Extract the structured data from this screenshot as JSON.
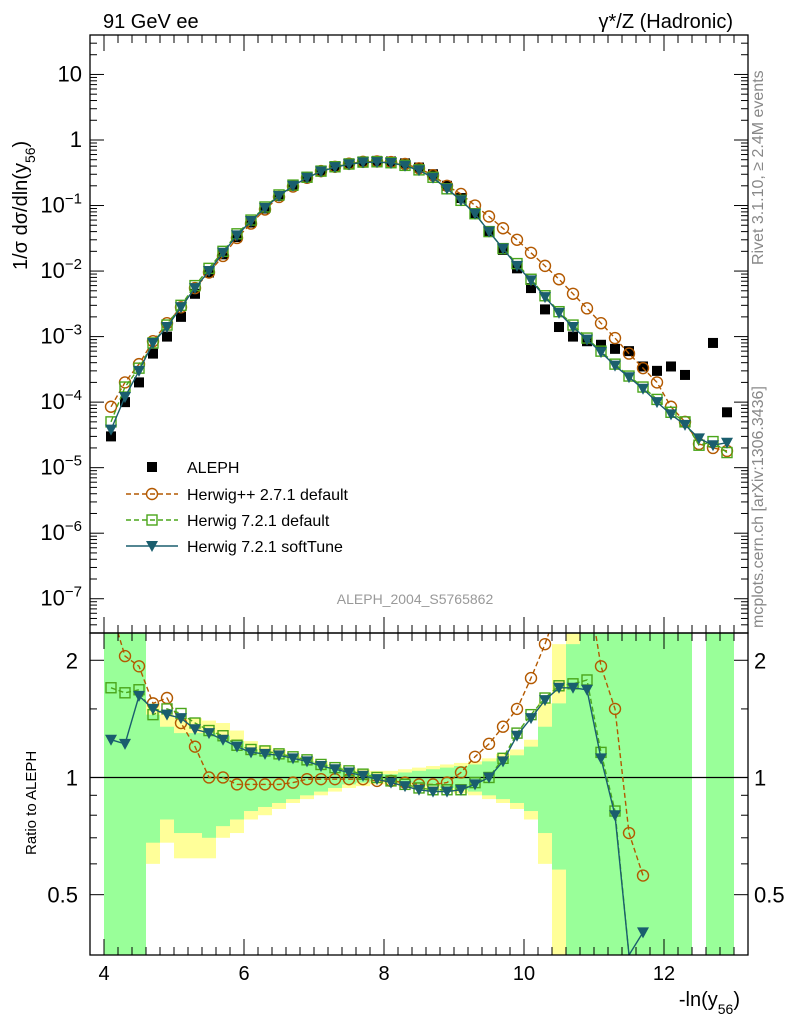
{
  "header": {
    "left_title": "91 GeV ee",
    "right_title": "γ*/Z (Hadronic)"
  },
  "side": {
    "rivet": "Rivet 3.1.10, ≥ 2.4M events",
    "mcplots": "mcplots.cern.ch [arXiv:1306.3436]"
  },
  "analysis_id": "ALEPH_2004_S5765862",
  "axes": {
    "main_ylabel_prefix": "1/σ  dσ/dln(y",
    "main_ylabel_sub": "56",
    "main_ylabel_suffix": ")",
    "ratio_ylabel": "Ratio to ALEPH",
    "xlabel_prefix": "-ln(y",
    "xlabel_sub": "56",
    "xlabel_suffix": ")",
    "main_yticks": [
      {
        "base": "10",
        "exp": "",
        "label": "10",
        "value": 10
      },
      {
        "base": "1",
        "exp": "",
        "label": "1",
        "value": 1
      },
      {
        "base": "10",
        "exp": "−1",
        "label": "10^-1",
        "value": 0.1
      },
      {
        "base": "10",
        "exp": "−2",
        "label": "10^-2",
        "value": 0.01
      },
      {
        "base": "10",
        "exp": "−3",
        "label": "10^-3",
        "value": 0.001
      },
      {
        "base": "10",
        "exp": "−4",
        "label": "10^-4",
        "value": 0.0001
      },
      {
        "base": "10",
        "exp": "−5",
        "label": "10^-5",
        "value": 1e-05
      },
      {
        "base": "10",
        "exp": "−6",
        "label": "10^-6",
        "value": 1e-06
      },
      {
        "base": "10",
        "exp": "−7",
        "label": "10^-7",
        "value": 1e-07
      }
    ],
    "ratio_yticks": [
      {
        "label": "2",
        "value": 2
      },
      {
        "label": "1",
        "value": 1
      },
      {
        "label": "0.5",
        "value": 0.5
      }
    ],
    "xticks": [
      {
        "label": "4",
        "value": 4
      },
      {
        "label": "6",
        "value": 6
      },
      {
        "label": "8",
        "value": 8
      },
      {
        "label": "10",
        "value": 10
      },
      {
        "label": "12",
        "value": 12
      }
    ]
  },
  "legend": {
    "items": [
      {
        "key": "aleph",
        "label": "ALEPH"
      },
      {
        "key": "hpp",
        "label": "Herwig++ 2.7.1 default"
      },
      {
        "key": "h721",
        "label": "Herwig 7.2.1 default"
      },
      {
        "key": "soft",
        "label": "Herwig 7.2.1 softTune"
      }
    ]
  },
  "chart_data": {
    "type": "scatter",
    "xlim": [
      3.8,
      13.2
    ],
    "ylim_main": [
      3e-08,
      40
    ],
    "ylim_ratio": [
      0.35,
      2.35
    ],
    "log_y_main": true,
    "log_y_ratio": true,
    "colors": {
      "aleph": "#000000",
      "hpp": "#b35900",
      "h721": "#4aa61a",
      "soft": "#1a5e6e",
      "band_stat": "#99ff99",
      "band_total": "#ffff99"
    },
    "series": [
      {
        "name": "ALEPH",
        "key": "aleph",
        "x": [
          4.1,
          4.3,
          4.5,
          4.7,
          4.9,
          5.1,
          5.3,
          5.5,
          5.7,
          5.9,
          6.1,
          6.3,
          6.5,
          6.7,
          6.9,
          7.1,
          7.3,
          7.5,
          7.7,
          7.9,
          8.1,
          8.3,
          8.5,
          8.7,
          8.9,
          9.1,
          9.3,
          9.5,
          9.7,
          9.9,
          10.1,
          10.3,
          10.5,
          10.7,
          10.9,
          11.1,
          11.3,
          11.5,
          11.7,
          11.9,
          12.1,
          12.3,
          12.7,
          12.9
        ],
        "y": [
          3e-05,
          0.0001,
          0.0002,
          0.00055,
          0.001,
          0.002,
          0.0045,
          0.0095,
          0.018,
          0.033,
          0.055,
          0.09,
          0.14,
          0.2,
          0.27,
          0.34,
          0.4,
          0.44,
          0.47,
          0.48,
          0.47,
          0.44,
          0.38,
          0.3,
          0.2,
          0.13,
          0.075,
          0.04,
          0.021,
          0.011,
          0.0055,
          0.0026,
          0.0014,
          0.001,
          0.00085,
          0.00075,
          0.00065,
          0.0006,
          0.00035,
          0.0003,
          0.00035,
          0.00026,
          0.0008,
          7e-05
        ]
      },
      {
        "name": "Herwig++ 2.7.1 default",
        "key": "hpp",
        "x": [
          4.1,
          4.3,
          4.5,
          4.7,
          4.9,
          5.1,
          5.3,
          5.5,
          5.7,
          5.9,
          6.1,
          6.3,
          6.5,
          6.7,
          6.9,
          7.1,
          7.3,
          7.5,
          7.7,
          7.9,
          8.1,
          8.3,
          8.5,
          8.7,
          8.9,
          9.1,
          9.3,
          9.5,
          9.7,
          9.9,
          10.1,
          10.3,
          10.5,
          10.7,
          10.9,
          11.1,
          11.3,
          11.5,
          11.7,
          11.9,
          12.1,
          12.3,
          12.5,
          12.7,
          12.9
        ],
        "y": [
          8.5e-05,
          0.0002,
          0.00038,
          0.00085,
          0.0016,
          0.0028,
          0.0055,
          0.0095,
          0.017,
          0.032,
          0.053,
          0.087,
          0.135,
          0.195,
          0.265,
          0.335,
          0.39,
          0.435,
          0.465,
          0.47,
          0.46,
          0.43,
          0.37,
          0.29,
          0.2,
          0.15,
          0.1,
          0.068,
          0.045,
          0.03,
          0.019,
          0.012,
          0.0075,
          0.0045,
          0.0027,
          0.0016,
          0.00095,
          0.00055,
          0.00033,
          0.0002,
          8.5e-05,
          5e-05,
          2.3e-05,
          2e-05,
          1.8e-05
        ]
      },
      {
        "name": "Herwig 7.2.1 default",
        "key": "h721",
        "x": [
          4.1,
          4.3,
          4.5,
          4.7,
          4.9,
          5.1,
          5.3,
          5.5,
          5.7,
          5.9,
          6.1,
          6.3,
          6.5,
          6.7,
          6.9,
          7.1,
          7.3,
          7.5,
          7.7,
          7.9,
          8.1,
          8.3,
          8.5,
          8.7,
          8.9,
          9.1,
          9.3,
          9.5,
          9.7,
          9.9,
          10.1,
          10.3,
          10.5,
          10.7,
          10.9,
          11.1,
          11.3,
          11.5,
          11.7,
          11.9,
          12.1,
          12.3,
          12.5,
          12.7,
          12.9
        ],
        "y": [
          5e-05,
          0.00017,
          0.00033,
          0.0008,
          0.0015,
          0.003,
          0.006,
          0.011,
          0.02,
          0.037,
          0.06,
          0.095,
          0.145,
          0.205,
          0.27,
          0.335,
          0.39,
          0.43,
          0.46,
          0.465,
          0.45,
          0.41,
          0.35,
          0.27,
          0.18,
          0.12,
          0.075,
          0.04,
          0.022,
          0.013,
          0.0075,
          0.0042,
          0.0024,
          0.0015,
          0.00095,
          0.0006,
          0.00038,
          0.00025,
          0.00017,
          0.00011,
          7e-05,
          5e-05,
          2.2e-05,
          2.5e-05,
          1.7e-05
        ]
      },
      {
        "name": "Herwig 7.2.1 softTune",
        "key": "soft",
        "x": [
          4.1,
          4.3,
          4.5,
          4.7,
          4.9,
          5.1,
          5.3,
          5.5,
          5.7,
          5.9,
          6.1,
          6.3,
          6.5,
          6.7,
          6.9,
          7.1,
          7.3,
          7.5,
          7.7,
          7.9,
          8.1,
          8.3,
          8.5,
          8.7,
          8.9,
          9.1,
          9.3,
          9.5,
          9.7,
          9.9,
          10.1,
          10.3,
          10.5,
          10.7,
          10.9,
          11.1,
          11.3,
          11.5,
          11.7,
          11.9,
          12.1,
          12.3,
          12.5,
          12.7,
          12.9
        ],
        "y": [
          3.8e-05,
          0.00012,
          0.0003,
          0.0008,
          0.0014,
          0.0028,
          0.0055,
          0.01,
          0.019,
          0.035,
          0.058,
          0.092,
          0.14,
          0.2,
          0.265,
          0.33,
          0.385,
          0.425,
          0.455,
          0.46,
          0.445,
          0.405,
          0.345,
          0.265,
          0.18,
          0.12,
          0.075,
          0.04,
          0.022,
          0.012,
          0.0072,
          0.004,
          0.0023,
          0.0014,
          0.0009,
          0.00058,
          0.00036,
          0.00024,
          0.00016,
          0.0001,
          6.5e-05,
          4.5e-05,
          2.8e-05,
          2.2e-05,
          2.4e-05
        ]
      }
    ],
    "ratio_series": [
      {
        "key": "hpp",
        "x": [
          4.1,
          4.3,
          4.5,
          4.7,
          4.9,
          5.1,
          5.3,
          5.5,
          5.7,
          5.9,
          6.1,
          6.3,
          6.5,
          6.7,
          6.9,
          7.1,
          7.3,
          7.5,
          7.7,
          7.9,
          8.1,
          8.3,
          8.5,
          8.7,
          8.9,
          9.1,
          9.3,
          9.5,
          9.7,
          9.9,
          10.1,
          10.3,
          10.5,
          10.7,
          10.9,
          11.1,
          11.3,
          11.5,
          11.7
        ],
        "y": [
          2.7,
          2.05,
          1.93,
          1.55,
          1.6,
          1.38,
          1.2,
          1.0,
          1.0,
          0.96,
          0.96,
          0.96,
          0.96,
          0.97,
          0.99,
          0.99,
          0.99,
          0.99,
          0.99,
          0.98,
          0.98,
          0.97,
          0.96,
          0.96,
          0.97,
          1.03,
          1.13,
          1.22,
          1.35,
          1.5,
          1.8,
          2.2,
          2.8,
          3.5,
          3.2,
          1.93,
          1.5,
          0.72,
          0.56
        ]
      },
      {
        "key": "h721",
        "x": [
          4.1,
          4.3,
          4.5,
          4.7,
          4.9,
          5.1,
          5.3,
          5.5,
          5.7,
          5.9,
          6.1,
          6.3,
          6.5,
          6.7,
          6.9,
          7.1,
          7.3,
          7.5,
          7.7,
          7.9,
          8.1,
          8.3,
          8.5,
          8.7,
          8.9,
          9.1,
          9.3,
          9.5,
          9.7,
          9.9,
          10.1,
          10.3,
          10.5,
          10.7,
          10.9,
          11.1,
          11.3,
          11.5,
          11.7
        ],
        "y": [
          1.7,
          1.65,
          1.68,
          1.45,
          1.5,
          1.46,
          1.38,
          1.32,
          1.28,
          1.21,
          1.18,
          1.17,
          1.15,
          1.13,
          1.11,
          1.08,
          1.06,
          1.04,
          1.02,
          1.0,
          0.98,
          0.96,
          0.94,
          0.93,
          0.93,
          0.93,
          0.97,
          1.0,
          1.12,
          1.3,
          1.45,
          1.6,
          1.72,
          1.74,
          1.78,
          1.16,
          0.82,
          0.35,
          0.33
        ]
      },
      {
        "key": "soft",
        "x": [
          4.1,
          4.3,
          4.5,
          4.7,
          4.9,
          5.1,
          5.3,
          5.5,
          5.7,
          5.9,
          6.1,
          6.3,
          6.5,
          6.7,
          6.9,
          7.1,
          7.3,
          7.5,
          7.7,
          7.9,
          8.1,
          8.3,
          8.5,
          8.7,
          8.9,
          9.1,
          9.3,
          9.5,
          9.7,
          9.9,
          10.1,
          10.3,
          10.5,
          10.7,
          10.9,
          11.1,
          11.3,
          11.5,
          11.7
        ],
        "y": [
          1.25,
          1.22,
          1.62,
          1.5,
          1.45,
          1.42,
          1.33,
          1.3,
          1.25,
          1.2,
          1.16,
          1.15,
          1.14,
          1.12,
          1.1,
          1.07,
          1.05,
          1.03,
          1.01,
          0.99,
          0.97,
          0.95,
          0.93,
          0.92,
          0.92,
          0.93,
          0.96,
          1.0,
          1.1,
          1.28,
          1.42,
          1.58,
          1.7,
          1.7,
          1.68,
          1.12,
          0.8,
          0.35,
          0.4
        ]
      }
    ],
    "bands": {
      "edges": [
        4.0,
        4.2,
        4.4,
        4.6,
        4.8,
        5.0,
        5.2,
        5.4,
        5.6,
        5.8,
        6.0,
        6.2,
        6.4,
        6.6,
        6.8,
        7.0,
        7.2,
        7.4,
        7.6,
        7.8,
        8.0,
        8.2,
        8.4,
        8.6,
        8.8,
        9.0,
        9.2,
        9.4,
        9.6,
        9.8,
        10.0,
        10.2,
        10.4,
        10.6,
        10.8,
        11.0,
        11.2,
        11.4,
        11.6,
        11.8,
        12.0,
        12.2,
        12.4,
        12.6,
        12.8,
        13.0
      ],
      "stat_lo": [
        0.3,
        0.3,
        0.3,
        0.68,
        0.78,
        0.72,
        0.72,
        0.7,
        0.75,
        0.78,
        0.82,
        0.84,
        0.86,
        0.88,
        0.9,
        0.92,
        0.94,
        0.96,
        0.97,
        0.98,
        0.98,
        0.97,
        0.96,
        0.95,
        0.94,
        0.93,
        0.92,
        0.9,
        0.88,
        0.86,
        0.82,
        0.72,
        0.58,
        0.3,
        0.3,
        0.3,
        0.3,
        0.3,
        0.3,
        0.3,
        0.3,
        0.3,
        null,
        0.3,
        0.3
      ],
      "stat_hi": [
        2.5,
        2.5,
        2.5,
        1.45,
        1.35,
        1.3,
        1.3,
        1.3,
        1.28,
        1.24,
        1.18,
        1.16,
        1.14,
        1.12,
        1.1,
        1.08,
        1.06,
        1.04,
        1.03,
        1.02,
        1.02,
        1.03,
        1.04,
        1.05,
        1.06,
        1.07,
        1.08,
        1.1,
        1.12,
        1.14,
        1.2,
        1.35,
        1.55,
        2.2,
        2.5,
        2.5,
        2.5,
        2.5,
        2.5,
        2.5,
        2.5,
        2.5,
        null,
        2.5,
        2.5
      ],
      "tot_lo": [
        0.3,
        0.3,
        0.48,
        0.6,
        0.68,
        0.62,
        0.62,
        0.62,
        0.7,
        0.72,
        0.78,
        0.8,
        0.83,
        0.86,
        0.88,
        0.9,
        0.92,
        0.94,
        0.95,
        0.96,
        0.96,
        0.95,
        0.94,
        0.93,
        0.92,
        0.91,
        0.9,
        0.88,
        0.86,
        0.83,
        0.78,
        0.6,
        0.3,
        0.3,
        0.3,
        0.3,
        0.3,
        0.3,
        0.3,
        0.3,
        0.3,
        0.3,
        null,
        0.3,
        0.3
      ],
      "tot_hi": [
        2.5,
        2.5,
        2.5,
        1.55,
        1.45,
        1.42,
        1.42,
        1.4,
        1.38,
        1.32,
        1.24,
        1.21,
        1.18,
        1.15,
        1.13,
        1.1,
        1.08,
        1.06,
        1.05,
        1.04,
        1.04,
        1.05,
        1.06,
        1.07,
        1.08,
        1.09,
        1.1,
        1.12,
        1.15,
        1.18,
        1.25,
        1.55,
        2.2,
        2.5,
        2.5,
        2.5,
        2.5,
        2.5,
        2.5,
        2.5,
        2.5,
        2.5,
        null,
        2.5,
        2.5
      ]
    }
  }
}
